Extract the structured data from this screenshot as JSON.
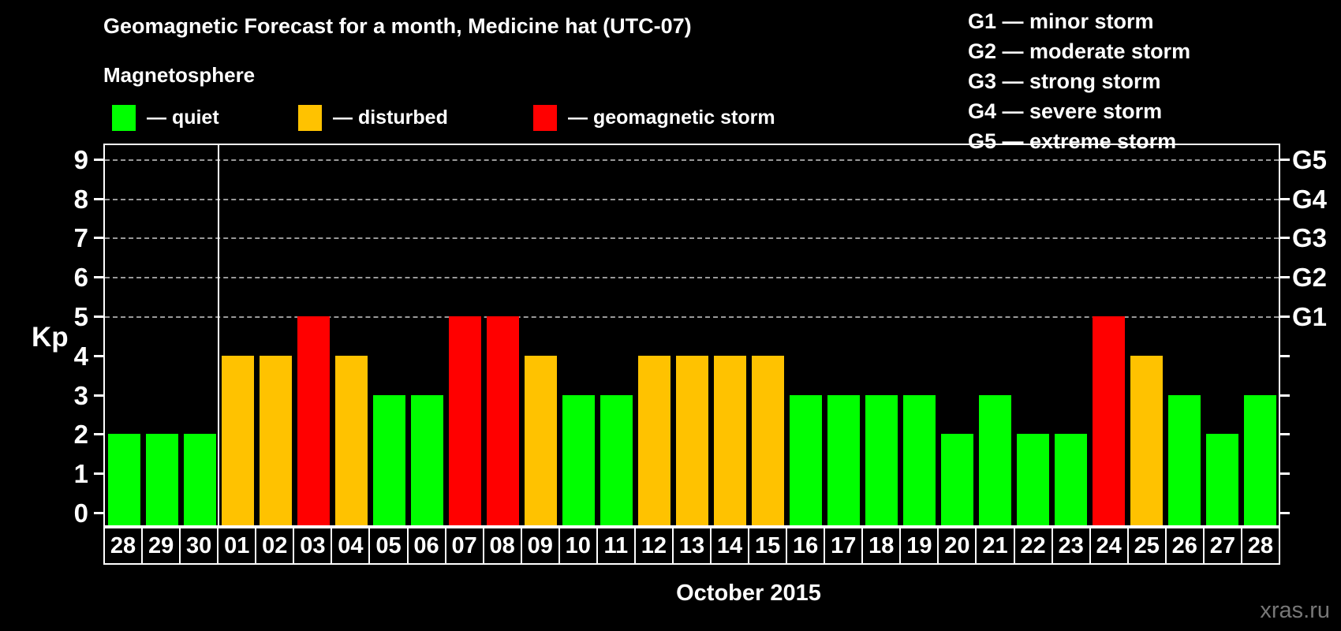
{
  "title": "Geomagnetic Forecast for a month, Medicine hat (UTC-07)",
  "subtitle": "Magnetosphere",
  "legend": {
    "quiet_label": "— quiet",
    "disturbed_label": "— disturbed",
    "storm_label": "— geomagnetic storm"
  },
  "storm_scale": [
    "G1 — minor storm",
    "G2 — moderate storm",
    "G3 — strong storm",
    "G4 — severe storm",
    "G5 — extreme storm"
  ],
  "axis": {
    "kp_label": "Kp",
    "kp_ticks": [
      "0",
      "1",
      "2",
      "3",
      "4",
      "5",
      "6",
      "7",
      "8",
      "9"
    ]
  },
  "footer": {
    "month_label": "October 2015",
    "watermark": "xras.ru"
  },
  "colors": {
    "quiet": "#00ff00",
    "disturbed": "#ffc200",
    "storm": "#ff0000",
    "background": "#000000",
    "grid": "#999999",
    "watermark": "#777777"
  },
  "chart_data": {
    "type": "bar",
    "title": "Geomagnetic Forecast for a month, Medicine hat (UTC-07)",
    "xlabel": "October 2015",
    "ylabel": "Kp",
    "ylim": [
      0,
      9
    ],
    "grid": "horizontal dashed lines at Kp 5,6,7,8,9 (G1–G5 storm levels)",
    "legend_position": "top",
    "categories": [
      "28",
      "29",
      "30",
      "01",
      "02",
      "03",
      "04",
      "05",
      "06",
      "07",
      "08",
      "09",
      "10",
      "11",
      "12",
      "13",
      "14",
      "15",
      "16",
      "17",
      "18",
      "19",
      "20",
      "21",
      "22",
      "23",
      "24",
      "25",
      "26",
      "27",
      "28"
    ],
    "values": [
      2,
      2,
      2,
      4,
      4,
      5,
      4,
      3,
      3,
      5,
      5,
      4,
      3,
      3,
      4,
      4,
      4,
      4,
      3,
      3,
      3,
      3,
      2,
      3,
      2,
      2,
      5,
      4,
      3,
      2,
      3
    ],
    "statuses": [
      "quiet",
      "quiet",
      "quiet",
      "disturbed",
      "disturbed",
      "storm",
      "disturbed",
      "quiet",
      "quiet",
      "storm",
      "storm",
      "disturbed",
      "quiet",
      "quiet",
      "disturbed",
      "disturbed",
      "disturbed",
      "disturbed",
      "quiet",
      "quiet",
      "quiet",
      "quiet",
      "quiet",
      "quiet",
      "quiet",
      "quiet",
      "storm",
      "disturbed",
      "quiet",
      "quiet",
      "quiet"
    ],
    "month_boundary_after_index": 2,
    "g_levels": {
      "G1": 5,
      "G2": 6,
      "G3": 7,
      "G4": 8,
      "G5": 9
    }
  }
}
